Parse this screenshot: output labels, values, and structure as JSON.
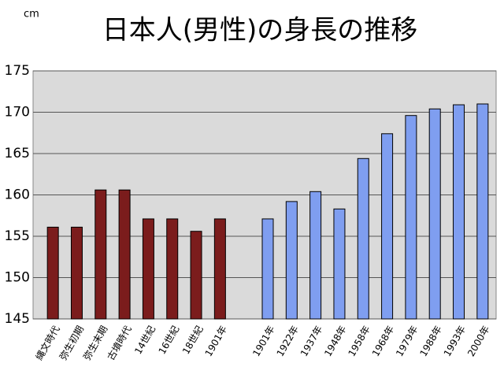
{
  "chart_data": {
    "type": "bar",
    "title": "日本人(男性)の身長の推移",
    "unit": "cm",
    "categories": [
      "縄文時代",
      "弥生初期",
      "弥生末期",
      "古墳時代",
      "14世紀",
      "16世紀",
      "18世紀",
      "1901年",
      null,
      "1901年",
      "1922年",
      "1937年",
      "1948年",
      "1958年",
      "1968年",
      "1979年",
      "1988年",
      "1993年",
      "2000年"
    ],
    "series": [
      {
        "color": "#7b1c1c",
        "values": [
          156.1,
          156.1,
          160.6,
          160.6,
          157.1,
          157.1,
          155.6,
          157.1,
          null,
          null,
          null,
          null,
          null,
          null,
          null,
          null,
          null,
          null,
          null
        ]
      },
      {
        "color": "#7f9ef0",
        "values": [
          null,
          null,
          null,
          null,
          null,
          null,
          null,
          null,
          null,
          157.1,
          159.2,
          160.4,
          158.3,
          164.4,
          167.4,
          169.6,
          170.4,
          170.9,
          171.0
        ]
      }
    ],
    "ylim": [
      145,
      175
    ],
    "yticks": [
      145,
      150,
      155,
      160,
      165,
      170,
      175
    ],
    "grid": true
  }
}
